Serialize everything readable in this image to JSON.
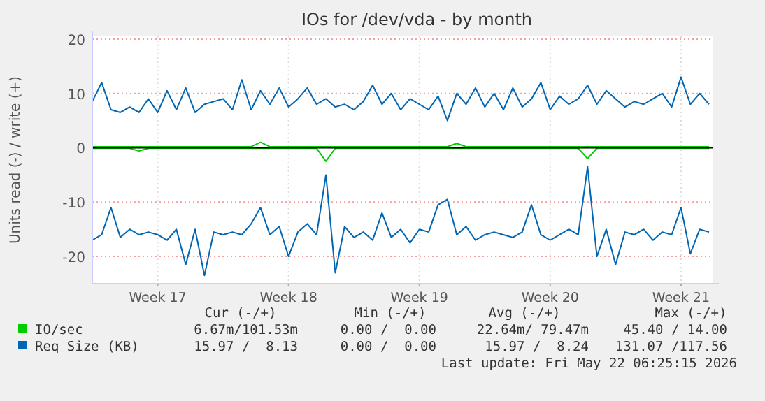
{
  "chart_data": {
    "type": "line",
    "title": "IOs for /dev/vda - by month",
    "ylabel": "Units read (-) / write (+)",
    "categories": [
      null,
      null,
      null,
      null,
      null,
      null,
      null,
      "Week 17",
      null,
      null,
      null,
      null,
      null,
      null,
      null,
      null,
      null,
      null,
      null,
      null,
      null,
      "Week 18",
      null,
      null,
      null,
      null,
      null,
      null,
      null,
      null,
      null,
      null,
      null,
      null,
      null,
      "Week 19",
      null,
      null,
      null,
      null,
      null,
      null,
      null,
      null,
      null,
      null,
      null,
      null,
      null,
      "Week 20",
      null,
      null,
      null,
      null,
      null,
      null,
      null,
      null,
      null,
      null,
      null,
      null,
      null,
      "Week 21",
      null,
      null,
      null
    ],
    "ylim": [
      -25,
      20.5
    ],
    "yticks": [
      -20,
      -10,
      0,
      10,
      20
    ],
    "grid": true,
    "legend": "bottom",
    "ref_lines": [
      {
        "axis": "y",
        "value": 0,
        "color": "#000000"
      }
    ],
    "series": [
      {
        "name": "IO/sec",
        "color": "#00cc00",
        "values": [
          0.2,
          0.2,
          0.2,
          0.2,
          0.2,
          0.2,
          0.2,
          0.2,
          0.2,
          0.2,
          0.2,
          0.2,
          0.2,
          0.2,
          0.2,
          0.2,
          0.2,
          0.2,
          1,
          0.2,
          0.2,
          0.2,
          0.2,
          0.2,
          0.2,
          0.2,
          0.2,
          0.2,
          0.2,
          0.2,
          0.2,
          0.2,
          0.2,
          0.2,
          0.2,
          0.2,
          0.2,
          0.2,
          0.2,
          0.8,
          0.2,
          0.2,
          0.2,
          0.2,
          0.2,
          0.2,
          0.2,
          0.2,
          0.2,
          0.2,
          0.2,
          0.2,
          0.2,
          0.2,
          0.2,
          0.2,
          0.2,
          0.2,
          0.2,
          0.2,
          0.2,
          0.2,
          0.2,
          0.2,
          0.2,
          0.2,
          0.2
        ]
      },
      {
        "color": "#00cc00",
        "values": [
          -0.1,
          -0.1,
          -0.1,
          -0.1,
          -0.1,
          -0.6,
          -0.1,
          -0.1,
          -0.1,
          -0.1,
          -0.1,
          -0.1,
          -0.1,
          -0.1,
          -0.1,
          -0.1,
          -0.1,
          -0.1,
          -0.1,
          -0.1,
          -0.1,
          -0.1,
          -0.1,
          -0.1,
          -0.1,
          -2.5,
          -0.1,
          -0.1,
          -0.1,
          -0.1,
          -0.1,
          -0.1,
          -0.1,
          -0.1,
          -0.1,
          -0.1,
          -0.1,
          -0.1,
          -0.1,
          -0.1,
          -0.1,
          -0.1,
          -0.1,
          -0.1,
          -0.1,
          -0.1,
          -0.1,
          -0.1,
          -0.1,
          -0.1,
          -0.1,
          -0.1,
          -0.1,
          -2,
          -0.1,
          -0.1,
          -0.1,
          -0.1,
          -0.1,
          -0.1,
          -0.1,
          -0.1,
          -0.1,
          -0.1,
          -0.1,
          -0.1,
          -0.1
        ]
      },
      {
        "name": "Req Size (KB)",
        "color": "#0066b3",
        "values": [
          8.5,
          12,
          7,
          6.5,
          7.5,
          6.5,
          9,
          6.5,
          10.5,
          7,
          11,
          6.5,
          8,
          8.5,
          9,
          7,
          12.5,
          7,
          10.5,
          8,
          11,
          7.5,
          9,
          11,
          8,
          9,
          7.5,
          8,
          7,
          8.5,
          11.5,
          8,
          10,
          7,
          9,
          8,
          7,
          9.5,
          5,
          10,
          8,
          11,
          7.5,
          10,
          7,
          11,
          7.5,
          9,
          12,
          7,
          9.5,
          8,
          9,
          11.5,
          8,
          10.5,
          9,
          7.5,
          8.5,
          8,
          9,
          10,
          7.5,
          13,
          8,
          10,
          8
        ]
      },
      {
        "color": "#0066b3",
        "values": [
          -17,
          -16,
          -11,
          -16.5,
          -15,
          -16,
          -15.5,
          -16,
          -17,
          -15,
          -21.5,
          -15,
          -23.5,
          -15.5,
          -16,
          -15.5,
          -16,
          -14,
          -11,
          -16,
          -14.5,
          -20,
          -15.5,
          -14,
          -16,
          -5,
          -23,
          -14.5,
          -16.5,
          -15.5,
          -17,
          -12,
          -16.5,
          -15,
          -17.5,
          -15,
          -15.5,
          -10.5,
          -9.5,
          -16,
          -14.5,
          -17,
          -16,
          -15.5,
          -16,
          -16.5,
          -15.5,
          -10.5,
          -16,
          -17,
          -16,
          -15,
          -16,
          -3.5,
          -20,
          -15,
          -21.5,
          -15.5,
          -16,
          -15,
          -17,
          -15.5,
          -16,
          -11,
          -19.5,
          -15,
          -15.5
        ]
      }
    ],
    "annotations": [
      "Cur (-/+)",
      "Min (-/+)",
      "Avg (-/+)",
      "Max (-/+)",
      "6.67m/101.53m",
      "0.00 /  0.00",
      "22.64m/ 79.47m",
      "45.40 / 14.00",
      "15.97 /  8.13",
      "0.00 /  0.00",
      "15.97 /  8.24",
      "131.07 /117.56",
      "Last update: Fri May 22 06:25:15 2026"
    ]
  }
}
